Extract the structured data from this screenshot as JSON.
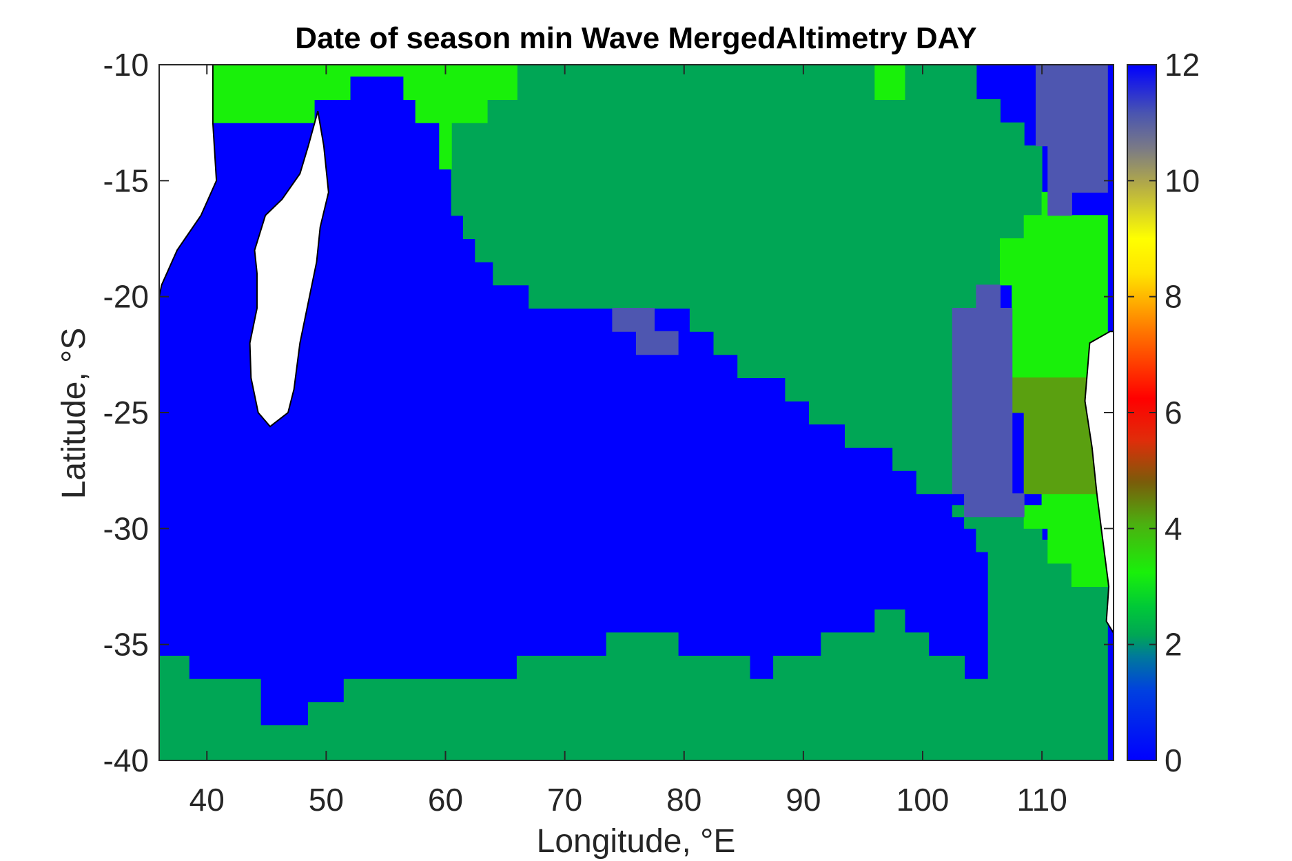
{
  "chart_data": {
    "type": "heatmap",
    "title": "Date of season min Wave MergedAltimetry DAY",
    "xlabel": "Longitude, °E",
    "ylabel": "Latitude, °S",
    "xlim": [
      36,
      116
    ],
    "ylim": [
      -40,
      -10
    ],
    "x_ticks": [
      40,
      50,
      60,
      70,
      80,
      90,
      100,
      110
    ],
    "x_tick_labels": [
      "40",
      "50",
      "60",
      "70",
      "80",
      "90",
      "100",
      "110"
    ],
    "y_ticks": [
      -10,
      -15,
      -20,
      -25,
      -30,
      -35,
      -40
    ],
    "y_tick_labels": [
      "-10",
      "-15",
      "-20",
      "-25",
      "-30",
      "-35",
      "-40"
    ],
    "colorbar": {
      "range": [
        0,
        12
      ],
      "ticks": [
        0,
        2,
        4,
        6,
        8,
        10,
        12
      ],
      "tick_labels": [
        "0",
        "2",
        "4",
        "6",
        "8",
        "10",
        "12"
      ],
      "colormap": "jet-like (blue-teal-green-yellow-red-grey-blue)"
    },
    "grid": false,
    "background_value": 0,
    "regions": [
      {
        "value": 2,
        "polygon": [
          [
            66,
            -10
          ],
          [
            96,
            -10
          ],
          [
            96,
            -11.5
          ],
          [
            98.5,
            -11.5
          ],
          [
            98.5,
            -10
          ],
          [
            104.5,
            -10
          ],
          [
            104.5,
            -11.5
          ],
          [
            106.5,
            -11.5
          ],
          [
            106.5,
            -12.5
          ],
          [
            108.5,
            -12.5
          ],
          [
            108.5,
            -13.5
          ],
          [
            110,
            -13.5
          ],
          [
            110,
            -16.5
          ],
          [
            108.5,
            -16.5
          ],
          [
            108.5,
            -17.5
          ],
          [
            107.5,
            -17.5
          ],
          [
            107.5,
            -19.5
          ],
          [
            104.5,
            -19.5
          ],
          [
            104.5,
            -20.5
          ],
          [
            102.5,
            -20.5
          ],
          [
            102.5,
            -28.5
          ],
          [
            99.5,
            -28.5
          ],
          [
            99.5,
            -27.5
          ],
          [
            97.5,
            -27.5
          ],
          [
            97.5,
            -26.5
          ],
          [
            93.5,
            -26.5
          ],
          [
            93.5,
            -25.5
          ],
          [
            90.5,
            -25.5
          ],
          [
            90.5,
            -24.5
          ],
          [
            88.5,
            -24.5
          ],
          [
            88.5,
            -23.5
          ],
          [
            84.5,
            -23.5
          ],
          [
            84.5,
            -22.5
          ],
          [
            82.5,
            -22.5
          ],
          [
            82.5,
            -21.5
          ],
          [
            80.5,
            -21.5
          ],
          [
            80.5,
            -20.5
          ],
          [
            67,
            -20.5
          ],
          [
            67,
            -19.5
          ],
          [
            64,
            -19.5
          ],
          [
            64,
            -18.5
          ],
          [
            62.5,
            -18.5
          ],
          [
            62.5,
            -17.5
          ],
          [
            61.5,
            -17.5
          ],
          [
            61.5,
            -16.5
          ],
          [
            60.5,
            -16.5
          ],
          [
            60.5,
            -12.5
          ],
          [
            63.5,
            -12.5
          ],
          [
            63.5,
            -11.5
          ],
          [
            66,
            -11.5
          ]
        ]
      },
      {
        "value": 2,
        "polygon": [
          [
            102.5,
            -29
          ],
          [
            108.5,
            -29
          ],
          [
            108.5,
            -30
          ],
          [
            110,
            -30
          ],
          [
            110,
            -30.5
          ],
          [
            112.5,
            -30.5
          ],
          [
            112.5,
            -32.5
          ],
          [
            115.5,
            -32.5
          ],
          [
            115.5,
            -40
          ],
          [
            36,
            -40
          ],
          [
            36,
            -35.5
          ],
          [
            38.5,
            -35.5
          ],
          [
            38.5,
            -36.5
          ],
          [
            44.5,
            -36.5
          ],
          [
            44.5,
            -38.5
          ],
          [
            48.5,
            -38.5
          ],
          [
            48.5,
            -37.5
          ],
          [
            51.5,
            -37.5
          ],
          [
            51.5,
            -36.5
          ],
          [
            66,
            -36.5
          ],
          [
            66,
            -35.5
          ],
          [
            73.5,
            -35.5
          ],
          [
            73.5,
            -34.5
          ],
          [
            79.5,
            -34.5
          ],
          [
            79.5,
            -35.5
          ],
          [
            85.5,
            -35.5
          ],
          [
            85.5,
            -36.5
          ],
          [
            87.5,
            -36.5
          ],
          [
            87.5,
            -35.5
          ],
          [
            91.5,
            -35.5
          ],
          [
            91.5,
            -34.5
          ],
          [
            96,
            -34.5
          ],
          [
            96,
            -33.5
          ],
          [
            98.5,
            -33.5
          ],
          [
            98.5,
            -34.5
          ],
          [
            100.5,
            -34.5
          ],
          [
            100.5,
            -35.5
          ],
          [
            103.5,
            -35.5
          ],
          [
            103.5,
            -36.5
          ],
          [
            105.5,
            -36.5
          ],
          [
            105.5,
            -31
          ],
          [
            104.5,
            -31
          ],
          [
            104.5,
            -30
          ],
          [
            103.5,
            -30
          ],
          [
            103.5,
            -29.5
          ],
          [
            102.5,
            -29.5
          ]
        ]
      },
      {
        "value": 3,
        "polygon": [
          [
            40.5,
            -10
          ],
          [
            66,
            -10
          ],
          [
            66,
            -11.5
          ],
          [
            63.5,
            -11.5
          ],
          [
            63.5,
            -12.5
          ],
          [
            60.5,
            -12.5
          ],
          [
            60.5,
            -14.5
          ],
          [
            59.5,
            -14.5
          ],
          [
            59.5,
            -12.5
          ],
          [
            57.5,
            -12.5
          ],
          [
            57.5,
            -11.5
          ],
          [
            56.5,
            -11.5
          ],
          [
            56.5,
            -10.5
          ],
          [
            52,
            -10.5
          ],
          [
            52,
            -11.5
          ],
          [
            49,
            -11.5
          ],
          [
            49,
            -12.5
          ],
          [
            40.5,
            -12.5
          ]
        ]
      },
      {
        "value": 3,
        "polygon": [
          [
            96,
            -10
          ],
          [
            98.5,
            -10
          ],
          [
            98.5,
            -11.5
          ],
          [
            96,
            -11.5
          ]
        ]
      },
      {
        "value": 3,
        "polygon": [
          [
            108.5,
            -16.5
          ],
          [
            110,
            -16.5
          ],
          [
            110,
            -15.5
          ],
          [
            111.5,
            -15.5
          ],
          [
            111.5,
            -16.5
          ],
          [
            115.5,
            -16.5
          ],
          [
            115.5,
            -23.5
          ],
          [
            107.5,
            -23.5
          ],
          [
            107.5,
            -19.5
          ],
          [
            106.5,
            -19.5
          ],
          [
            106.5,
            -17.5
          ],
          [
            108.5,
            -17.5
          ]
        ]
      },
      {
        "value": 3,
        "polygon": [
          [
            108.5,
            -29
          ],
          [
            110,
            -29
          ],
          [
            110,
            -28.5
          ],
          [
            115.5,
            -28.5
          ],
          [
            115.5,
            -32.5
          ],
          [
            112.5,
            -32.5
          ],
          [
            112.5,
            -31.5
          ],
          [
            110.5,
            -31.5
          ],
          [
            110.5,
            -30
          ],
          [
            108.5,
            -30
          ]
        ]
      },
      {
        "value": 3.8,
        "polygon": [
          [
            107.5,
            -23.5
          ],
          [
            115.5,
            -23.5
          ],
          [
            115.5,
            -28.5
          ],
          [
            108.5,
            -28.5
          ],
          [
            108.5,
            -25
          ],
          [
            107.5,
            -25
          ]
        ]
      },
      {
        "value": 11,
        "polygon": [
          [
            109.5,
            -10
          ],
          [
            115.5,
            -10
          ],
          [
            115.5,
            -15.5
          ],
          [
            112.5,
            -15.5
          ],
          [
            112.5,
            -16.5
          ],
          [
            110.5,
            -16.5
          ],
          [
            110.5,
            -13.5
          ],
          [
            109.5,
            -13.5
          ]
        ]
      },
      {
        "value": 11,
        "polygon": [
          [
            104.5,
            -19.5
          ],
          [
            106.5,
            -19.5
          ],
          [
            106.5,
            -20.5
          ],
          [
            107.5,
            -20.5
          ],
          [
            107.5,
            -28.5
          ],
          [
            108.5,
            -28.5
          ],
          [
            108.5,
            -29.5
          ],
          [
            103.5,
            -29.5
          ],
          [
            103.5,
            -28.5
          ],
          [
            102.5,
            -28.5
          ],
          [
            102.5,
            -20.5
          ],
          [
            104.5,
            -20.5
          ]
        ]
      },
      {
        "value": 11,
        "polygon": [
          [
            74,
            -20.5
          ],
          [
            77.5,
            -20.5
          ],
          [
            77.5,
            -21.5
          ],
          [
            79.5,
            -21.5
          ],
          [
            79.5,
            -22.5
          ],
          [
            76,
            -22.5
          ],
          [
            76,
            -21.5
          ],
          [
            74,
            -21.5
          ]
        ]
      }
    ],
    "land_masks": [
      {
        "name": "Africa",
        "polygon": [
          [
            36,
            -10
          ],
          [
            40.5,
            -10
          ],
          [
            40.5,
            -12.5
          ],
          [
            40.8,
            -15
          ],
          [
            39.5,
            -16.5
          ],
          [
            37.5,
            -18
          ],
          [
            36.2,
            -19.5
          ],
          [
            36,
            -20
          ]
        ]
      },
      {
        "name": "Madagascar",
        "polygon": [
          [
            49.3,
            -12
          ],
          [
            49.8,
            -13.5
          ],
          [
            50.2,
            -15.5
          ],
          [
            49.5,
            -17
          ],
          [
            49.2,
            -18.5
          ],
          [
            48.6,
            -20
          ],
          [
            47.8,
            -22
          ],
          [
            47.3,
            -24
          ],
          [
            46.8,
            -25
          ],
          [
            45.3,
            -25.6
          ],
          [
            44.3,
            -25
          ],
          [
            43.7,
            -23.5
          ],
          [
            43.6,
            -22
          ],
          [
            44.2,
            -20.5
          ],
          [
            44.2,
            -19
          ],
          [
            44,
            -18
          ],
          [
            44.9,
            -16.5
          ],
          [
            46.3,
            -15.8
          ],
          [
            47.8,
            -14.7
          ],
          [
            48.5,
            -13.5
          ]
        ]
      },
      {
        "name": "Australia",
        "polygon": [
          [
            115.7,
            -21.5
          ],
          [
            114,
            -22
          ],
          [
            113.6,
            -24.5
          ],
          [
            114.2,
            -26.5
          ],
          [
            114.6,
            -28.5
          ],
          [
            115.1,
            -30.5
          ],
          [
            115.6,
            -32.5
          ],
          [
            115.4,
            -34
          ],
          [
            116,
            -34.5
          ],
          [
            116,
            -21.5
          ]
        ]
      }
    ]
  }
}
